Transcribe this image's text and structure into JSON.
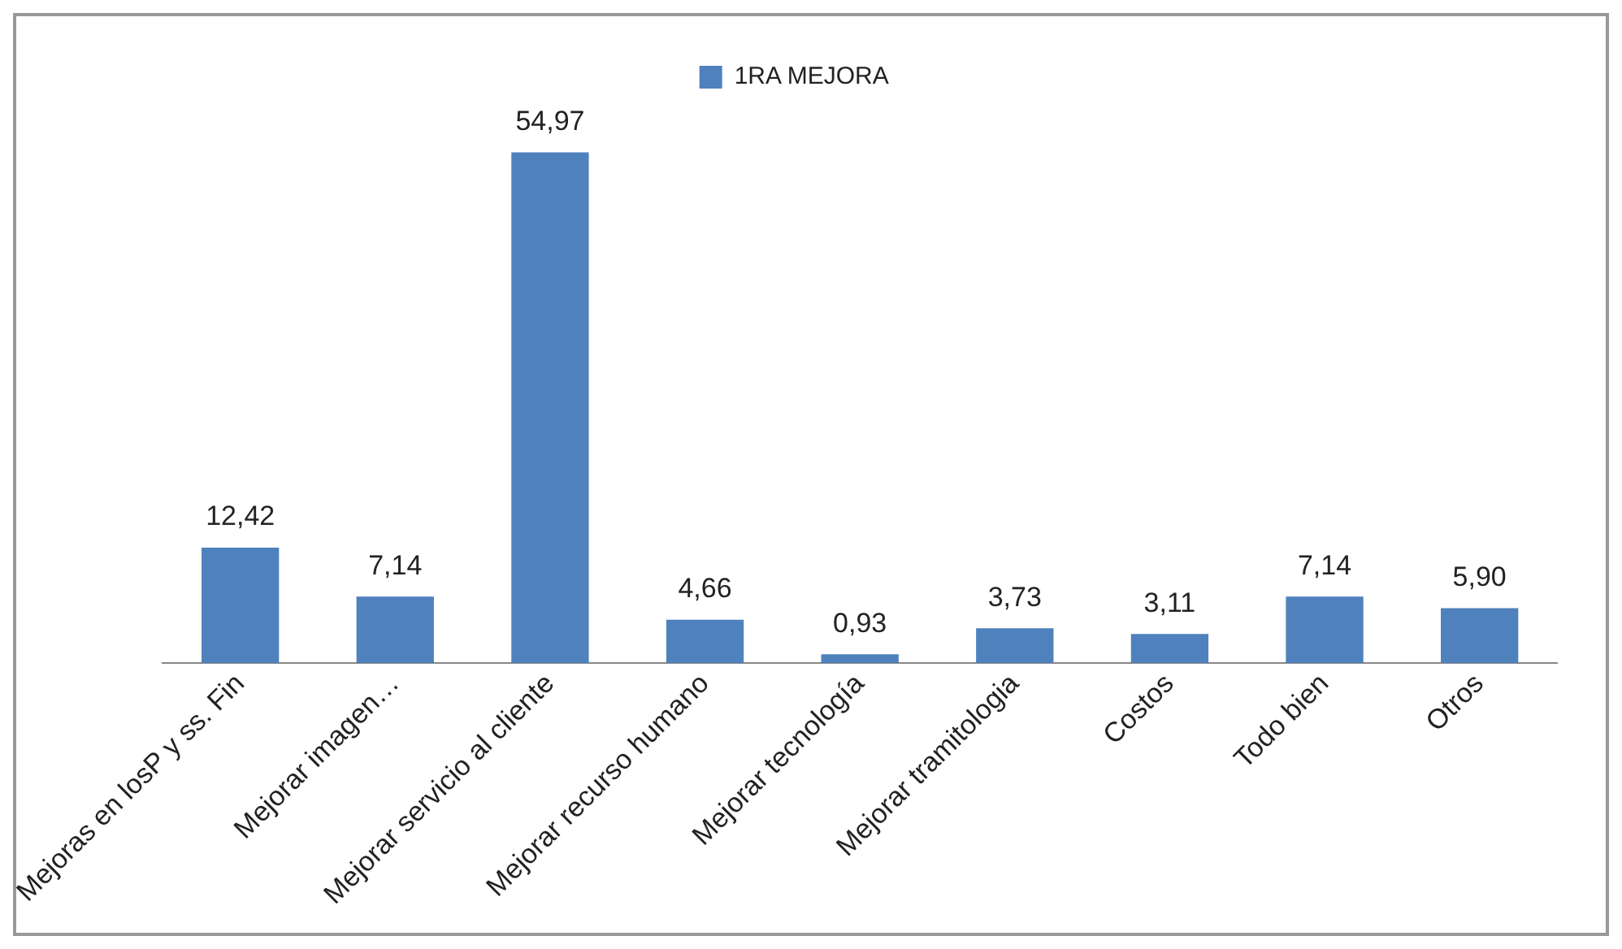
{
  "chart_data": {
    "type": "bar",
    "categories": [
      "Mejoras en losP y ss. Fin",
      "Mejorar imagen…",
      "Mejorar servicio al cliente",
      "Mejorar recurso humano",
      "Mejorar tecnología",
      "Mejorar tramitologia",
      "Costos",
      "Todo bien",
      "Otros"
    ],
    "series": [
      {
        "name": "1RA MEJORA",
        "color": "#4f81bd",
        "values": [
          12.42,
          7.14,
          54.97,
          4.66,
          0.93,
          3.73,
          3.11,
          7.14,
          5.9
        ],
        "value_labels": [
          "12,42",
          "7,14",
          "54,97",
          "4,66",
          "0,93",
          "3,73",
          "3,11",
          "7,14",
          "5,90"
        ]
      }
    ],
    "legend": "top",
    "grid": false,
    "tick_labels": "x"
  }
}
